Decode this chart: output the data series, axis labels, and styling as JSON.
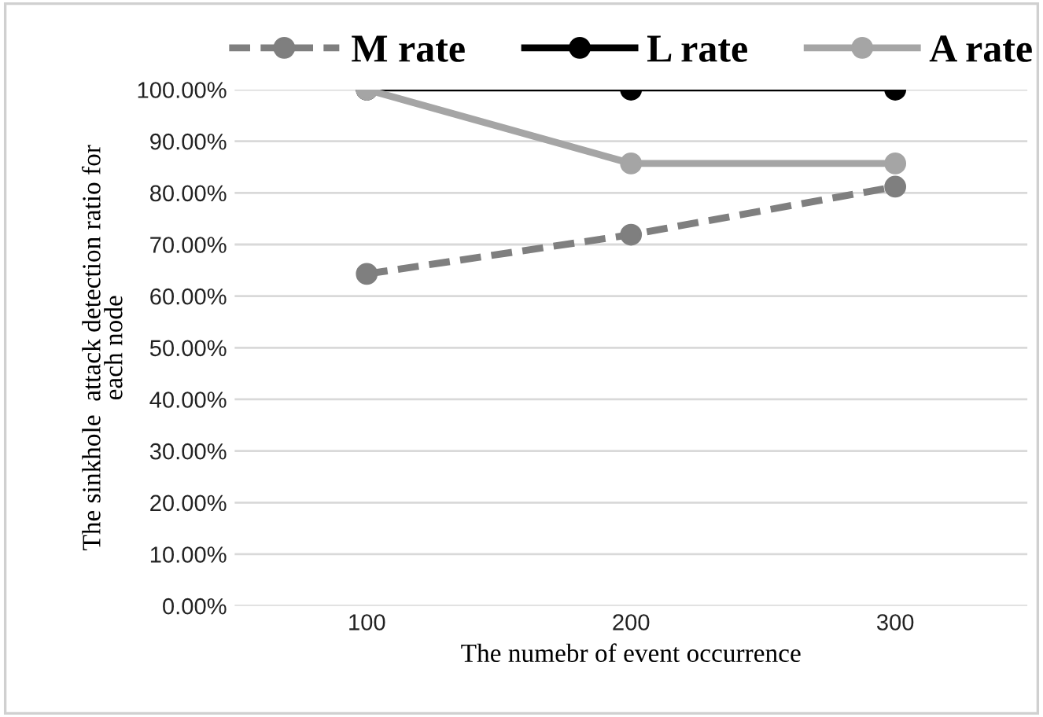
{
  "chart_data": {
    "type": "line",
    "xlabel": "The numebr of event occurrence",
    "ylabel": "The sinkhole  attack detection ratio for\neach node",
    "categories": [
      "100",
      "200",
      "300"
    ],
    "series": [
      {
        "name": "M rate",
        "color": "#7f7f7f",
        "values": [
          64.3,
          71.9,
          81.2
        ],
        "line_style": "dashed"
      },
      {
        "name": "L rate",
        "color": "#000000",
        "values": [
          100,
          100,
          100
        ],
        "line_style": "solid"
      },
      {
        "name": "A rate",
        "color": "#a5a5a5",
        "values": [
          100,
          85.7,
          85.7
        ],
        "line_style": "solid"
      }
    ],
    "ylim": [
      0,
      100
    ],
    "yticks": [
      {
        "value": 0,
        "label": "0.00%"
      },
      {
        "value": 10,
        "label": "10.00%"
      },
      {
        "value": 20,
        "label": "20.00%"
      },
      {
        "value": 30,
        "label": "30.00%"
      },
      {
        "value": 40,
        "label": "40.00%"
      },
      {
        "value": 50,
        "label": "50.00%"
      },
      {
        "value": 60,
        "label": "60.00%"
      },
      {
        "value": 70,
        "label": "70.00%"
      },
      {
        "value": 80,
        "label": "80.00%"
      },
      {
        "value": 90,
        "label": "90.00%"
      },
      {
        "value": 100,
        "label": "100.00%"
      }
    ],
    "grid": "y",
    "legend": "top",
    "marker": "circle"
  }
}
